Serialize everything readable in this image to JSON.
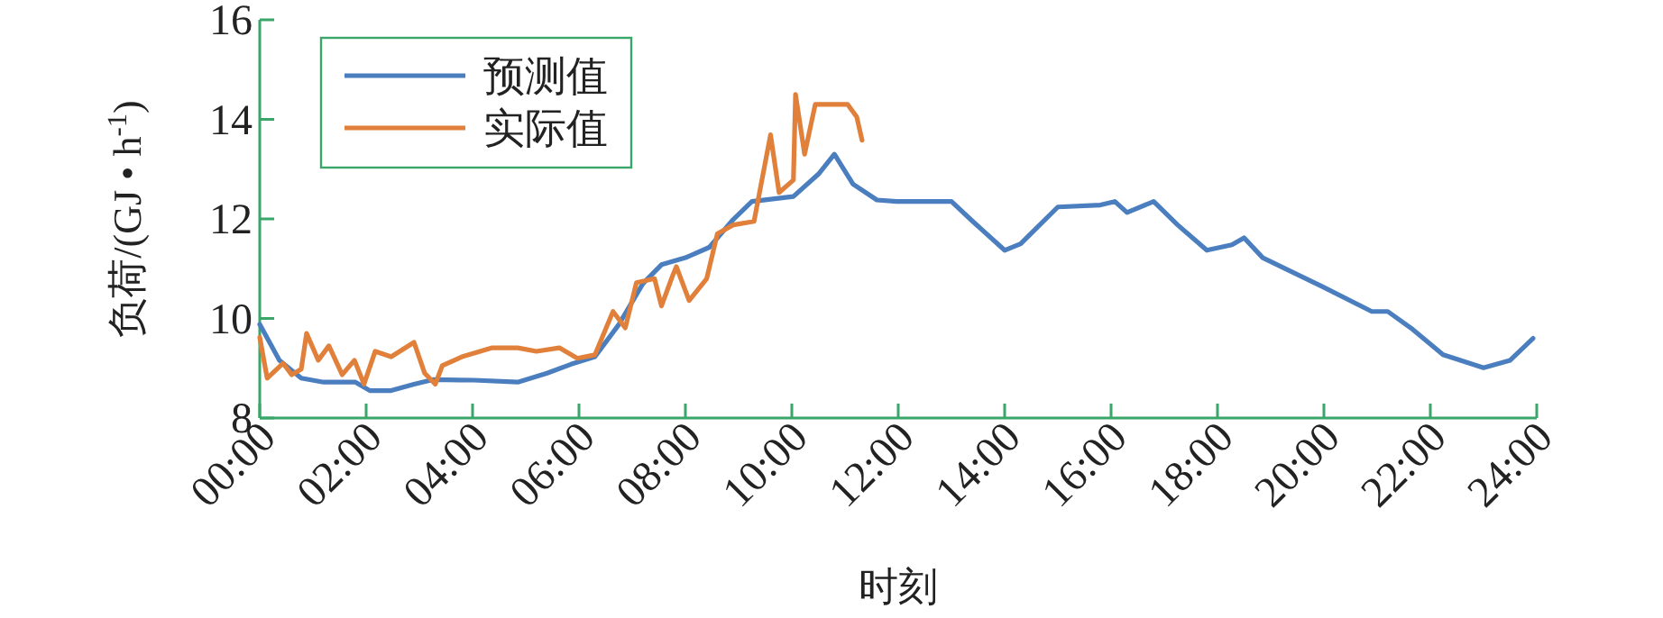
{
  "chart_data": {
    "type": "line",
    "xlabel": "时刻",
    "ylabel": "负荷/(GJ • h$^{-1}$)",
    "legend": "top left",
    "xlim": [
      0,
      24
    ],
    "ylim": [
      8,
      16
    ],
    "xticks": [
      {
        "value": 0,
        "label": "00:00"
      },
      {
        "value": 2,
        "label": "02:00"
      },
      {
        "value": 4,
        "label": "04:00"
      },
      {
        "value": 6,
        "label": "06:00"
      },
      {
        "value": 8,
        "label": "08:00"
      },
      {
        "value": 10,
        "label": "10:00"
      },
      {
        "value": 12,
        "label": "12:00"
      },
      {
        "value": 14,
        "label": "14:00"
      },
      {
        "value": 16,
        "label": "16:00"
      },
      {
        "value": 18,
        "label": "18:00"
      },
      {
        "value": 20,
        "label": "20:00"
      },
      {
        "value": 22,
        "label": "22:00"
      },
      {
        "value": 24,
        "label": "24:00"
      }
    ],
    "yticks": [
      8,
      10,
      12,
      14,
      16
    ],
    "series": [
      {
        "name": "预测值",
        "color": "#4a7ebf",
        "x": [
          0,
          0.37,
          0.78,
          1.2,
          1.8,
          2.07,
          2.47,
          2.9,
          3.25,
          4.03,
          4.85,
          5.4,
          5.85,
          6.3,
          6.75,
          7.2,
          7.55,
          8.0,
          8.45,
          8.9,
          9.25,
          10.03,
          10.5,
          10.8,
          11.15,
          11.6,
          11.97,
          12.5,
          13.0,
          13.4,
          14.0,
          14.3,
          15.0,
          15.8,
          16.07,
          16.3,
          16.8,
          17.25,
          17.8,
          18.27,
          18.5,
          18.85,
          19.97,
          20.9,
          21.2,
          21.67,
          22.24,
          23.0,
          23.5,
          23.93
        ],
        "values": [
          9.88,
          9.16,
          8.8,
          8.72,
          8.72,
          8.55,
          8.55,
          8.68,
          8.77,
          8.76,
          8.72,
          8.9,
          9.08,
          9.23,
          9.88,
          10.7,
          11.08,
          11.22,
          11.43,
          11.99,
          12.35,
          12.45,
          12.9,
          13.3,
          12.7,
          12.38,
          12.35,
          12.35,
          12.35,
          11.95,
          11.37,
          11.5,
          12.24,
          12.28,
          12.35,
          12.13,
          12.35,
          11.88,
          11.37,
          11.48,
          11.62,
          11.22,
          10.64,
          10.14,
          10.14,
          9.78,
          9.27,
          9.01,
          9.16,
          9.6
        ]
      },
      {
        "name": "实际值",
        "color": "#e0803a",
        "x": [
          0,
          0.14,
          0.44,
          0.6,
          0.78,
          0.88,
          1.1,
          1.3,
          1.55,
          1.78,
          1.96,
          2.17,
          2.47,
          2.9,
          3.1,
          3.3,
          3.43,
          3.8,
          4.37,
          4.85,
          5.2,
          5.63,
          5.97,
          6.3,
          6.64,
          6.87,
          7.08,
          7.42,
          7.55,
          7.76,
          7.83,
          8.07,
          8.4,
          8.6,
          8.9,
          9.29,
          9.6,
          9.76,
          10.03,
          10.07,
          10.24,
          10.44,
          10.71,
          11.05,
          11.22,
          11.32
        ],
        "values": [
          9.62,
          8.8,
          9.1,
          8.87,
          8.98,
          9.7,
          9.16,
          9.45,
          8.87,
          9.16,
          8.68,
          9.34,
          9.23,
          9.52,
          8.9,
          8.68,
          9.05,
          9.23,
          9.41,
          9.41,
          9.34,
          9.41,
          9.2,
          9.27,
          10.14,
          9.81,
          10.72,
          10.8,
          10.25,
          10.86,
          11.04,
          10.36,
          10.8,
          11.7,
          11.88,
          11.95,
          13.69,
          12.53,
          12.78,
          14.5,
          13.3,
          14.3,
          14.3,
          14.3,
          14.05,
          13.58
        ]
      }
    ]
  }
}
